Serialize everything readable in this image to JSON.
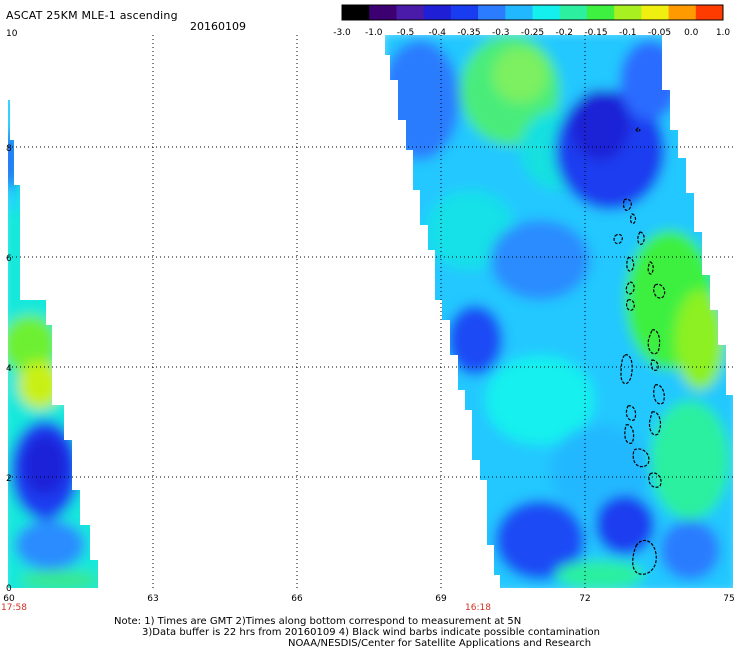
{
  "header": {
    "title": "ASCAT 25KM MLE-1 ascending",
    "date": "20160109"
  },
  "colorbar": {
    "labels": [
      "-3.0",
      "-1.0",
      "-0.5",
      "-0.4",
      "-0.35",
      "-0.3",
      "-0.25",
      "-0.2",
      "-0.15",
      "-0.1",
      "-0.05",
      "0.0",
      "1.0"
    ],
    "colors": [
      "#000000",
      "#3c0070",
      "#4a1aa8",
      "#1f1fd6",
      "#1a3cf0",
      "#2b7cff",
      "#22b8ff",
      "#13f0ee",
      "#2cf0a0",
      "#3ef040",
      "#a8f020",
      "#f0f010",
      "#ff9b00",
      "#ff3b00"
    ]
  },
  "axes": {
    "x_ticks": [
      "60",
      "63",
      "66",
      "69",
      "72",
      "75"
    ],
    "y_ticks": [
      "0",
      "2",
      "4",
      "6",
      "8",
      "10"
    ],
    "time_labels": [
      "17:58",
      "16:18"
    ]
  },
  "footer": {
    "line1": "Note: 1) Times are GMT 2)Times along bottom correspond to measurement at 5N",
    "line2": "3)Data buffer is 22 hrs from 20160109 4) Black wind barbs indicate possible contamination",
    "line3": "NOAA/NESDIS/Center for Satellite Applications and Research"
  }
}
